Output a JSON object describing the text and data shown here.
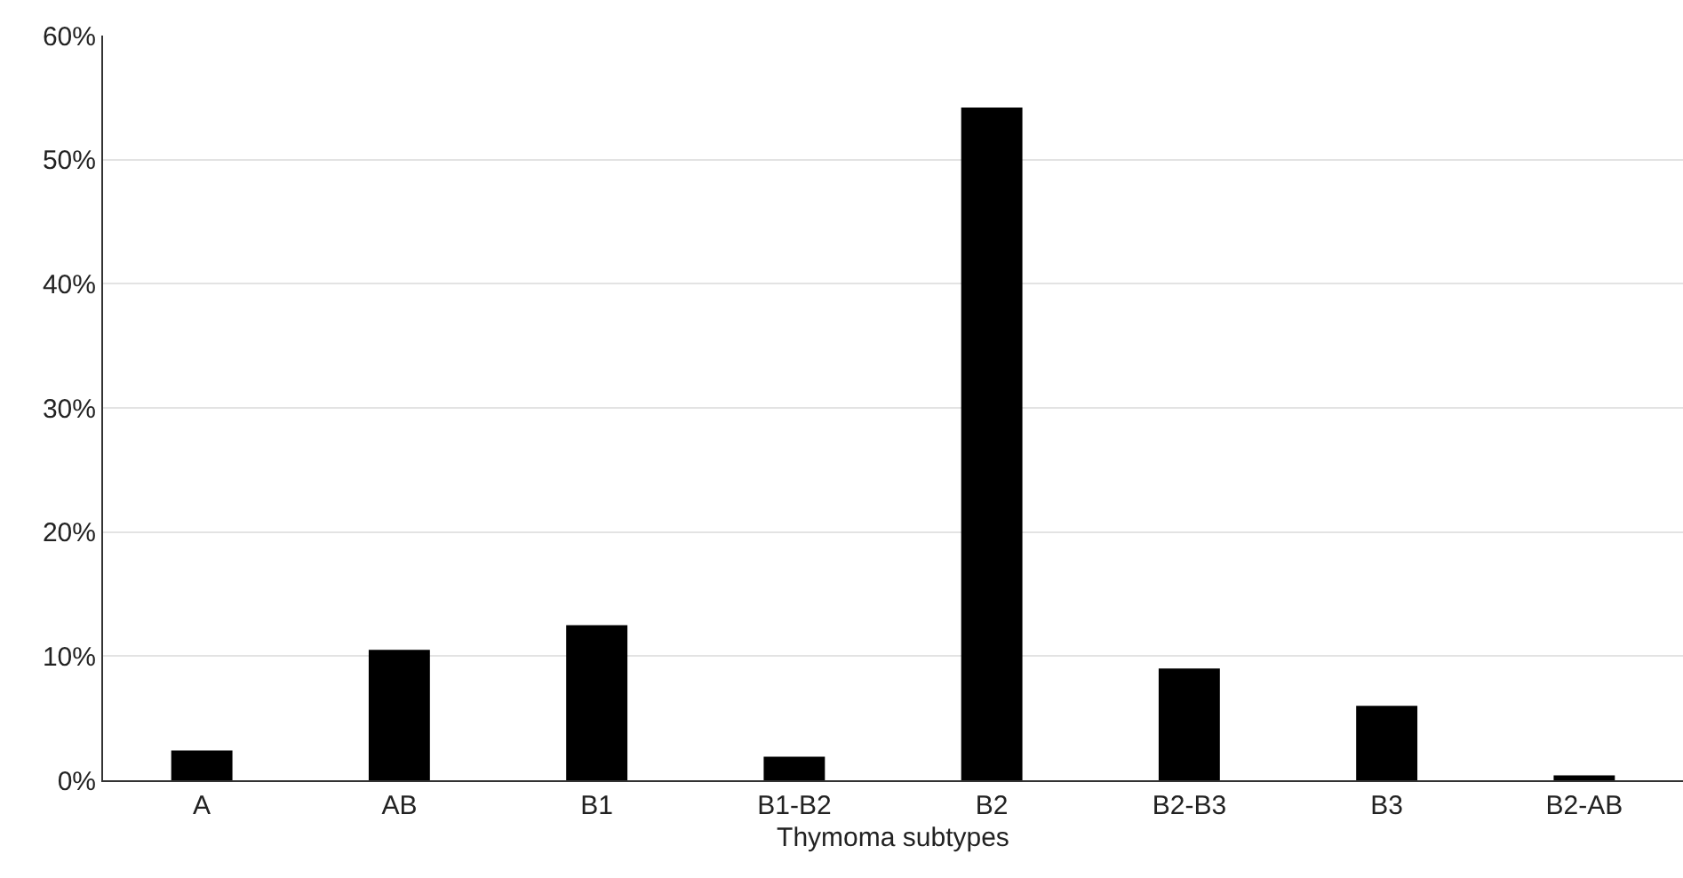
{
  "chart_data": {
    "type": "bar",
    "xlabel": "Thymoma subtypes",
    "categories": [
      "A",
      "AB",
      "B1",
      "B1-B2",
      "B2",
      "B2-B3",
      "B3",
      "B2-AB"
    ],
    "values": [
      2.4,
      10.5,
      12.5,
      1.9,
      54.2,
      9.0,
      6.0,
      0.4
    ],
    "color": "#000000",
    "ylim": [
      0,
      60
    ],
    "yticks": [
      {
        "value": 0,
        "label": "0%"
      },
      {
        "value": 10,
        "label": "10%"
      },
      {
        "value": 20,
        "label": "20%"
      },
      {
        "value": 30,
        "label": "30%"
      },
      {
        "value": 40,
        "label": "40%"
      },
      {
        "value": 50,
        "label": "50%"
      },
      {
        "value": 60,
        "label": "60%"
      }
    ],
    "grid": "y"
  }
}
